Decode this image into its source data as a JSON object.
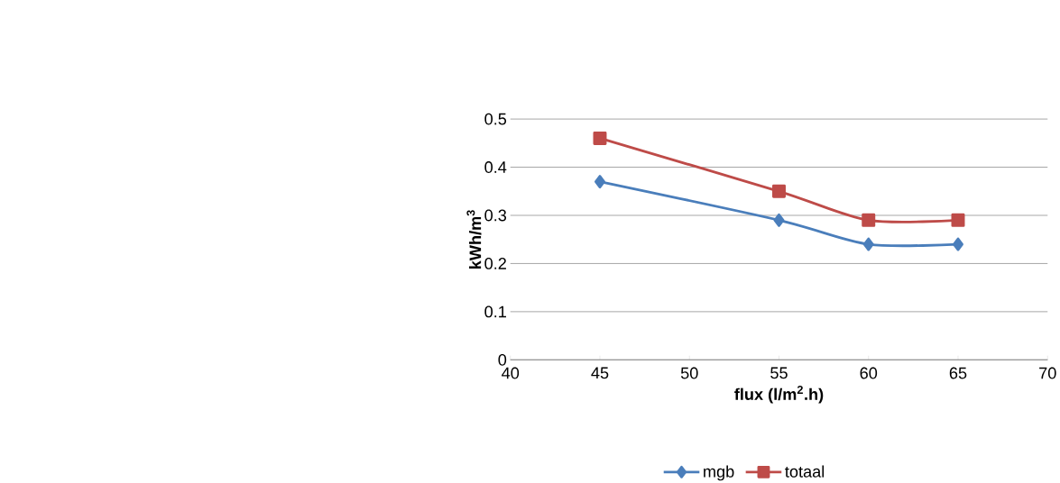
{
  "chart_data": {
    "type": "line",
    "xlabel": "flux (l/m$^{2}$.h)",
    "ylabel": "kWh/m$^{3}$",
    "xlim": [
      40,
      70
    ],
    "xticks": [
      40,
      45,
      50,
      55,
      60,
      65,
      70
    ],
    "ylim": [
      0,
      0.5
    ],
    "yticks": [
      0,
      0.1,
      0.2,
      0.3,
      0.4,
      0.5
    ],
    "x": [
      45,
      55,
      60,
      65
    ],
    "grid": "y",
    "legend": "bottom",
    "line_style": "solid",
    "series": [
      {
        "name": "mgb",
        "color": "#4a7ebb",
        "marker": "diamond",
        "values": [
          0.37,
          0.29,
          0.24,
          0.24
        ]
      },
      {
        "name": "totaal",
        "color": "#be4b48",
        "marker": "square",
        "values": [
          0.46,
          0.35,
          0.29,
          0.29
        ]
      }
    ]
  }
}
